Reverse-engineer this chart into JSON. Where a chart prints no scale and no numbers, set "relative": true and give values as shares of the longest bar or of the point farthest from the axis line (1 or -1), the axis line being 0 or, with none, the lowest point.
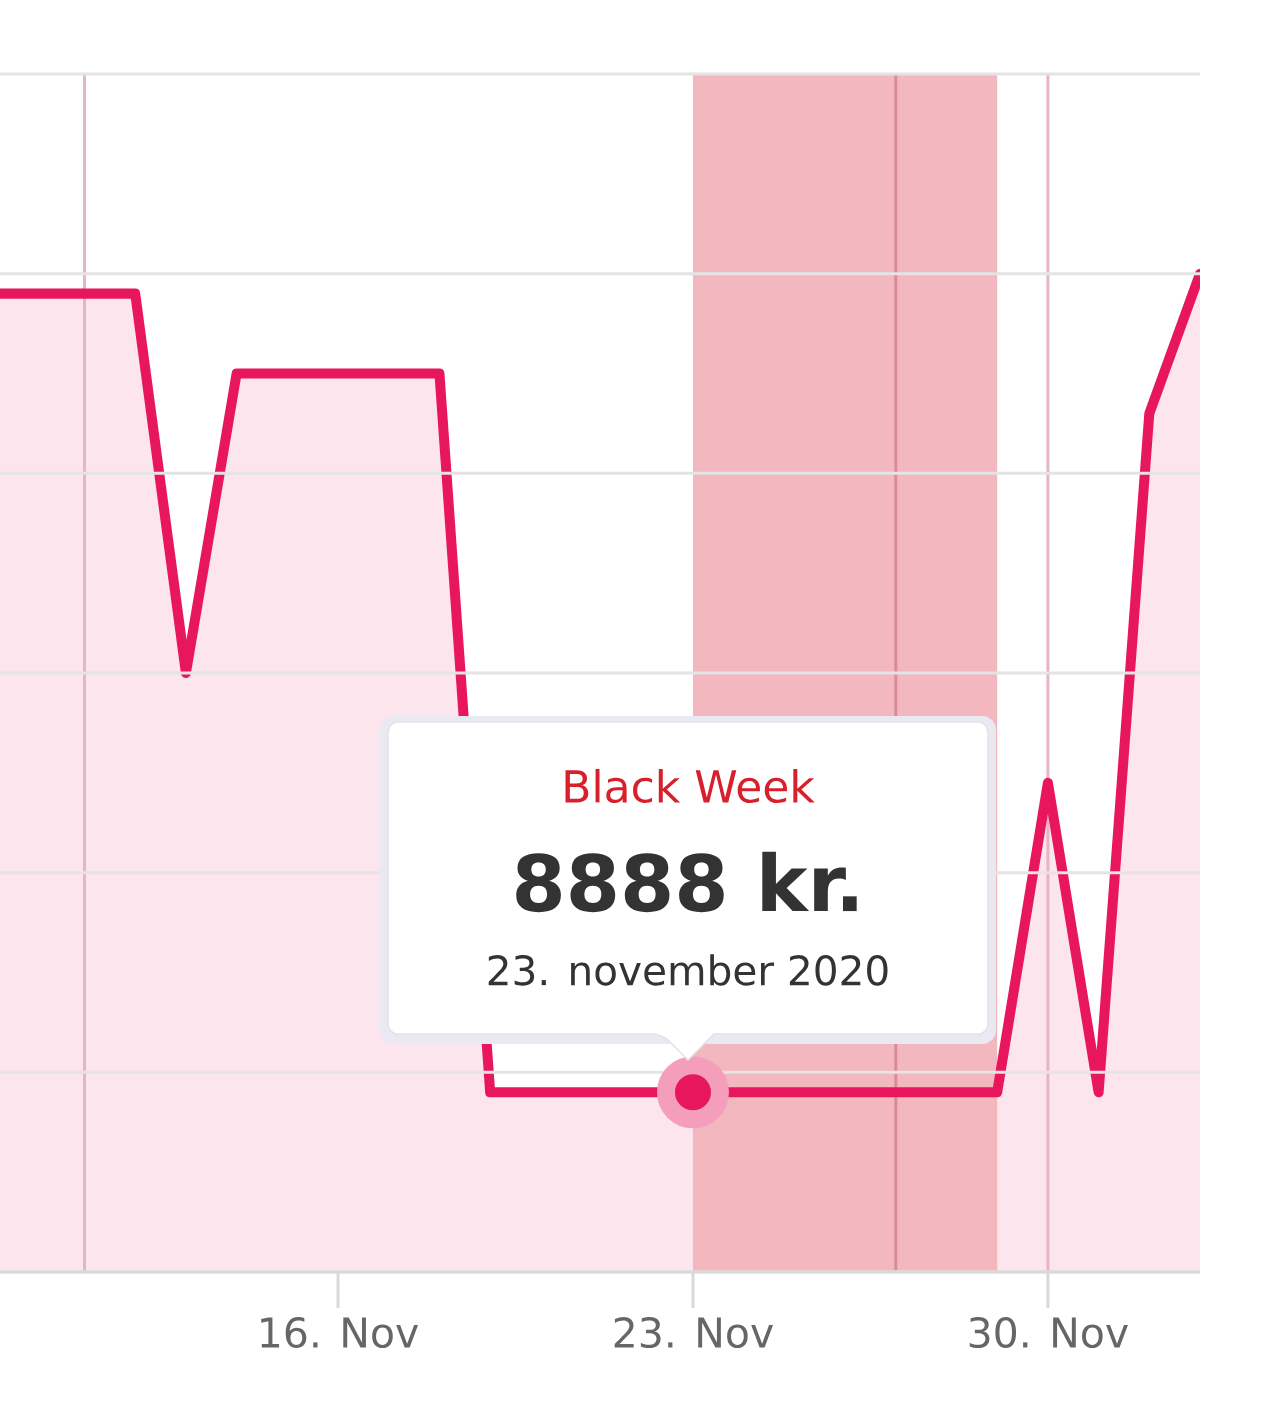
{
  "chart_data": {
    "type": "area",
    "relative": true,
    "x": [
      "2020-11-09T08:00",
      "2020-11-12",
      "2020-11-13",
      "2020-11-14",
      "2020-11-18",
      "2020-11-19",
      "2020-11-29",
      "2020-11-30",
      "2020-12-01",
      "2020-12-02",
      "2020-12-03"
    ],
    "series": [
      {
        "color": "#e8175d",
        "values": [
          0.98,
          0.98,
          0.6,
          0.9,
          0.9,
          0.18,
          0.18,
          0.49,
          0.18,
          0.86,
          1
        ]
      },
      {
        "type": "scatter",
        "x": [
          "2020-11-23"
        ],
        "color": "#e8175d",
        "values": [
          0.18
        ]
      }
    ],
    "xlim": [
      "2020-11-09T08:00",
      "2020-12-03"
    ],
    "xticks": [
      {
        "value": "2020-11-16",
        "label": "16. Nov"
      },
      {
        "value": "2020-11-23",
        "label": "23. Nov"
      },
      {
        "value": "2020-11-30",
        "label": "30. Nov"
      }
    ],
    "grid": "y",
    "ref_lines": [
      {
        "axis": "x",
        "value": "2020-11-11",
        "color": "#e6b5c2"
      },
      {
        "axis": "x",
        "value": "2020-11-27",
        "color": "#d98c98"
      },
      {
        "axis": "x",
        "value": "2020-11-30",
        "color": "#e6b5c2"
      }
    ],
    "bands": [
      {
        "axis": "x",
        "from": "2020-11-23",
        "to": "2020-11-29",
        "color": "#f2b7bf"
      }
    ],
    "annotations": [
      "Black Week",
      "8888 kr.",
      "23. november 2020"
    ]
  }
}
